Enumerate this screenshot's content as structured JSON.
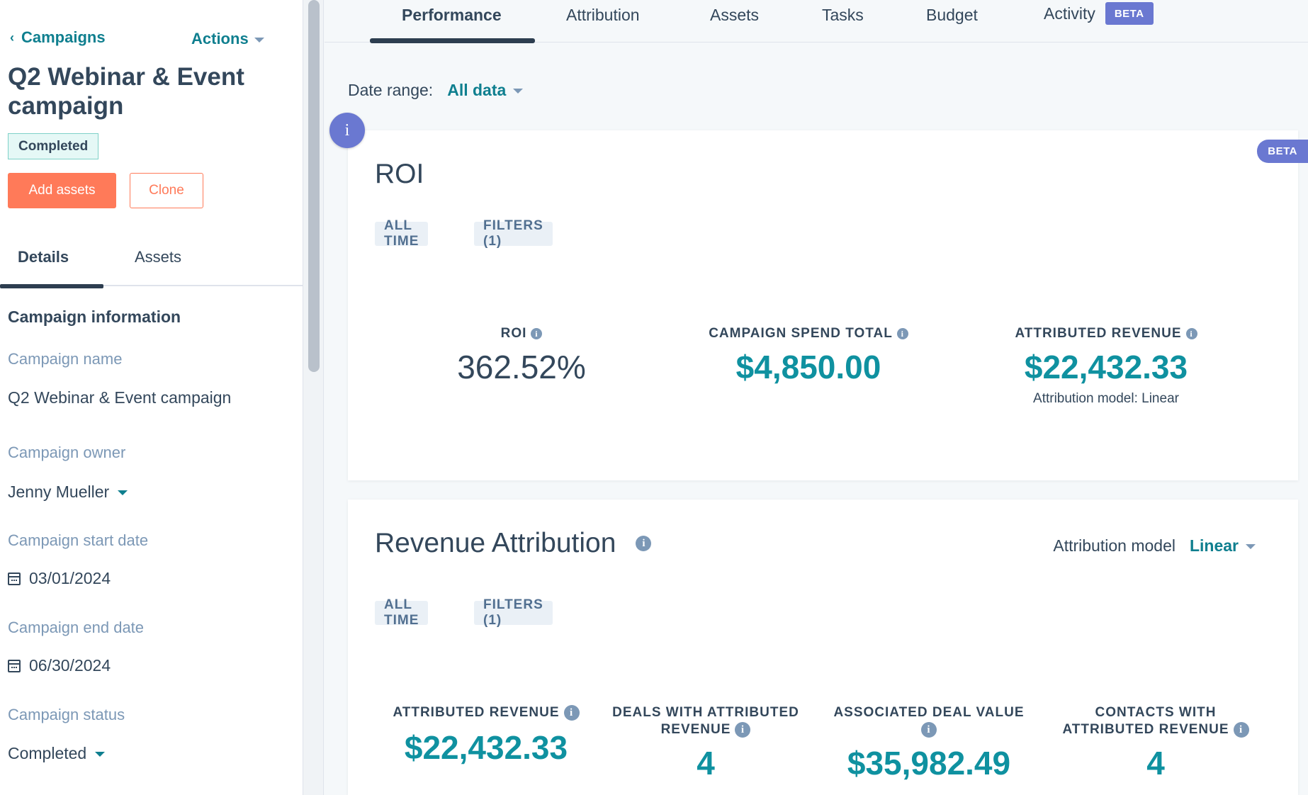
{
  "sidebar": {
    "back_label": "Campaigns",
    "actions_label": "Actions",
    "title": "Q2 Webinar & Event campaign",
    "status_tag": "Completed",
    "add_assets_label": "Add assets",
    "clone_label": "Clone",
    "tabs": [
      {
        "label": "Details",
        "active": true
      },
      {
        "label": "Assets",
        "active": false
      }
    ],
    "section_heading": "Campaign information",
    "fields": {
      "name_label": "Campaign name",
      "name_value": "Q2 Webinar & Event campaign",
      "owner_label": "Campaign owner",
      "owner_value": "Jenny Mueller",
      "start_label": "Campaign start date",
      "start_value": "03/01/2024",
      "end_label": "Campaign end date",
      "end_value": "06/30/2024",
      "status_label": "Campaign status",
      "status_value": "Completed"
    }
  },
  "topnav": {
    "tabs": [
      {
        "label": "Performance",
        "active": true
      },
      {
        "label": "Attribution",
        "active": false
      },
      {
        "label": "Assets",
        "active": false
      },
      {
        "label": "Tasks",
        "active": false
      },
      {
        "label": "Budget",
        "active": false
      },
      {
        "label": "Activity",
        "active": false
      }
    ],
    "activity_badge": "BETA"
  },
  "date_range": {
    "label": "Date range:",
    "value": "All data"
  },
  "info_icon_glyph": "i",
  "roi_card": {
    "beta_badge": "BETA",
    "title": "ROI",
    "pill_time": "ALL TIME",
    "pill_filters": "FILTERS (1)",
    "metrics": {
      "roi_label": "ROI",
      "roi_value": "362.52%",
      "spend_label": "CAMPAIGN SPEND TOTAL",
      "spend_value": "$4,850.00",
      "revenue_label": "ATTRIBUTED REVENUE",
      "revenue_value": "$22,432.33",
      "revenue_sub": "Attribution model: Linear"
    }
  },
  "revenue_card": {
    "title": "Revenue Attribution",
    "model_label": "Attribution model",
    "model_value": "Linear",
    "pill_time": "ALL TIME",
    "pill_filters": "FILTERS (1)",
    "metrics": {
      "attributed_label": "ATTRIBUTED REVENUE",
      "attributed_value": "$22,432.33",
      "deals_label_1": "DEALS WITH ATTRIBUTED",
      "deals_label_2": "REVENUE",
      "deals_value": "4",
      "deal_value_label": "ASSOCIATED DEAL VALUE",
      "deal_value_value": "$35,982.49",
      "contacts_label_1": "CONTACTS WITH",
      "contacts_label_2": "ATTRIBUTED REVENUE",
      "contacts_value": "4"
    }
  },
  "colors": {
    "accent_teal": "#0f91a0",
    "link_teal": "#0f7f8f",
    "primary_orange": "#ff7a59",
    "beta_purple": "#6a78d1",
    "text_dark": "#33475b",
    "label_gray": "#7c98b6"
  },
  "icons": {
    "back": "chevron-left-icon",
    "dropdown": "caret-down-icon",
    "calendar": "calendar-icon",
    "info": "info-icon"
  }
}
